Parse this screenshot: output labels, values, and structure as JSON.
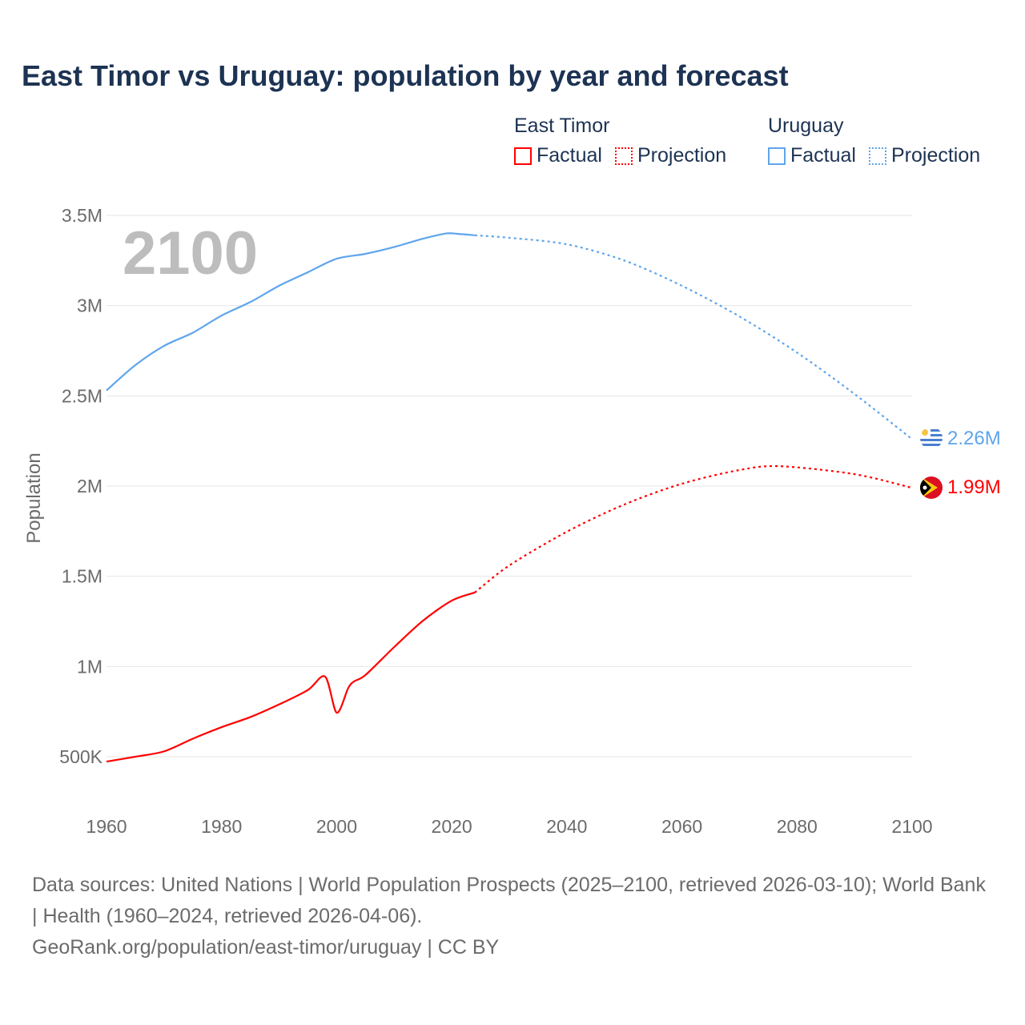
{
  "title": "East Timor vs Uruguay: population by year and forecast",
  "legend": {
    "groups": [
      {
        "name": "East Timor",
        "color": "#ff0000",
        "items": [
          "Factual",
          "Projection"
        ]
      },
      {
        "name": "Uruguay",
        "color": "#5fa5ec",
        "items": [
          "Factual",
          "Projection"
        ]
      }
    ]
  },
  "footer": {
    "sources": "Data sources: United Nations | World Population Prospects (2025–2100, retrieved 2026-03-10); World Bank | Health (1960–2024, retrieved 2026-04-06).",
    "credit": "GeoRank.org/population/east-timor/uruguay | CC BY"
  },
  "chart_data": {
    "type": "line",
    "title": "East Timor vs Uruguay: population by year and forecast",
    "year_overlay": "2100",
    "xlabel": "",
    "ylabel": "Population",
    "xlim": [
      1960,
      2100
    ],
    "ylim": [
      500000,
      3500000
    ],
    "x_ticks": [
      "1960",
      "1980",
      "2000",
      "2020",
      "2040",
      "2060",
      "2080",
      "2100"
    ],
    "y_ticks": [
      {
        "value": 500000,
        "label": "500K"
      },
      {
        "value": 1000000,
        "label": "1M"
      },
      {
        "value": 1500000,
        "label": "1.5M"
      },
      {
        "value": 2000000,
        "label": "2M"
      },
      {
        "value": 2500000,
        "label": "2.5M"
      },
      {
        "value": 3000000,
        "label": "3M"
      },
      {
        "value": 3500000,
        "label": "3.5M"
      }
    ],
    "grid": true,
    "legend_position": "top-right",
    "series": [
      {
        "name": "Uruguay",
        "color": "#5fa5ec",
        "end_label": "2.26M",
        "factual": [
          [
            1960,
            2530000
          ],
          [
            1965,
            2670000
          ],
          [
            1970,
            2777000
          ],
          [
            1975,
            2850000
          ],
          [
            1980,
            2945000
          ],
          [
            1985,
            3020000
          ],
          [
            1990,
            3110000
          ],
          [
            1995,
            3185000
          ],
          [
            2000,
            3260000
          ],
          [
            2005,
            3287000
          ],
          [
            2010,
            3325000
          ],
          [
            2015,
            3371000
          ],
          [
            2019,
            3400000
          ],
          [
            2021,
            3398000
          ],
          [
            2024,
            3390000
          ]
        ],
        "projection": [
          [
            2024,
            3390000
          ],
          [
            2030,
            3376000
          ],
          [
            2040,
            3340000
          ],
          [
            2050,
            3250000
          ],
          [
            2060,
            3110000
          ],
          [
            2070,
            2940000
          ],
          [
            2080,
            2740000
          ],
          [
            2090,
            2510000
          ],
          [
            2100,
            2260000
          ]
        ]
      },
      {
        "name": "East Timor",
        "color": "#ff0000",
        "end_label": "1.99M",
        "factual": [
          [
            1960,
            473000
          ],
          [
            1965,
            500000
          ],
          [
            1970,
            530000
          ],
          [
            1975,
            600000
          ],
          [
            1980,
            664000
          ],
          [
            1985,
            720000
          ],
          [
            1990,
            790000
          ],
          [
            1995,
            870000
          ],
          [
            1998,
            944000
          ],
          [
            2000,
            744000
          ],
          [
            2002,
            880000
          ],
          [
            2003,
            917000
          ],
          [
            2005,
            953000
          ],
          [
            2010,
            1108000
          ],
          [
            2015,
            1254000
          ],
          [
            2020,
            1365000
          ],
          [
            2024,
            1410000
          ]
        ],
        "projection": [
          [
            2024,
            1410000
          ],
          [
            2030,
            1560000
          ],
          [
            2040,
            1747000
          ],
          [
            2050,
            1898000
          ],
          [
            2060,
            2013000
          ],
          [
            2070,
            2089000
          ],
          [
            2077,
            2110000
          ],
          [
            2090,
            2066000
          ],
          [
            2100,
            1990000
          ]
        ]
      }
    ]
  }
}
